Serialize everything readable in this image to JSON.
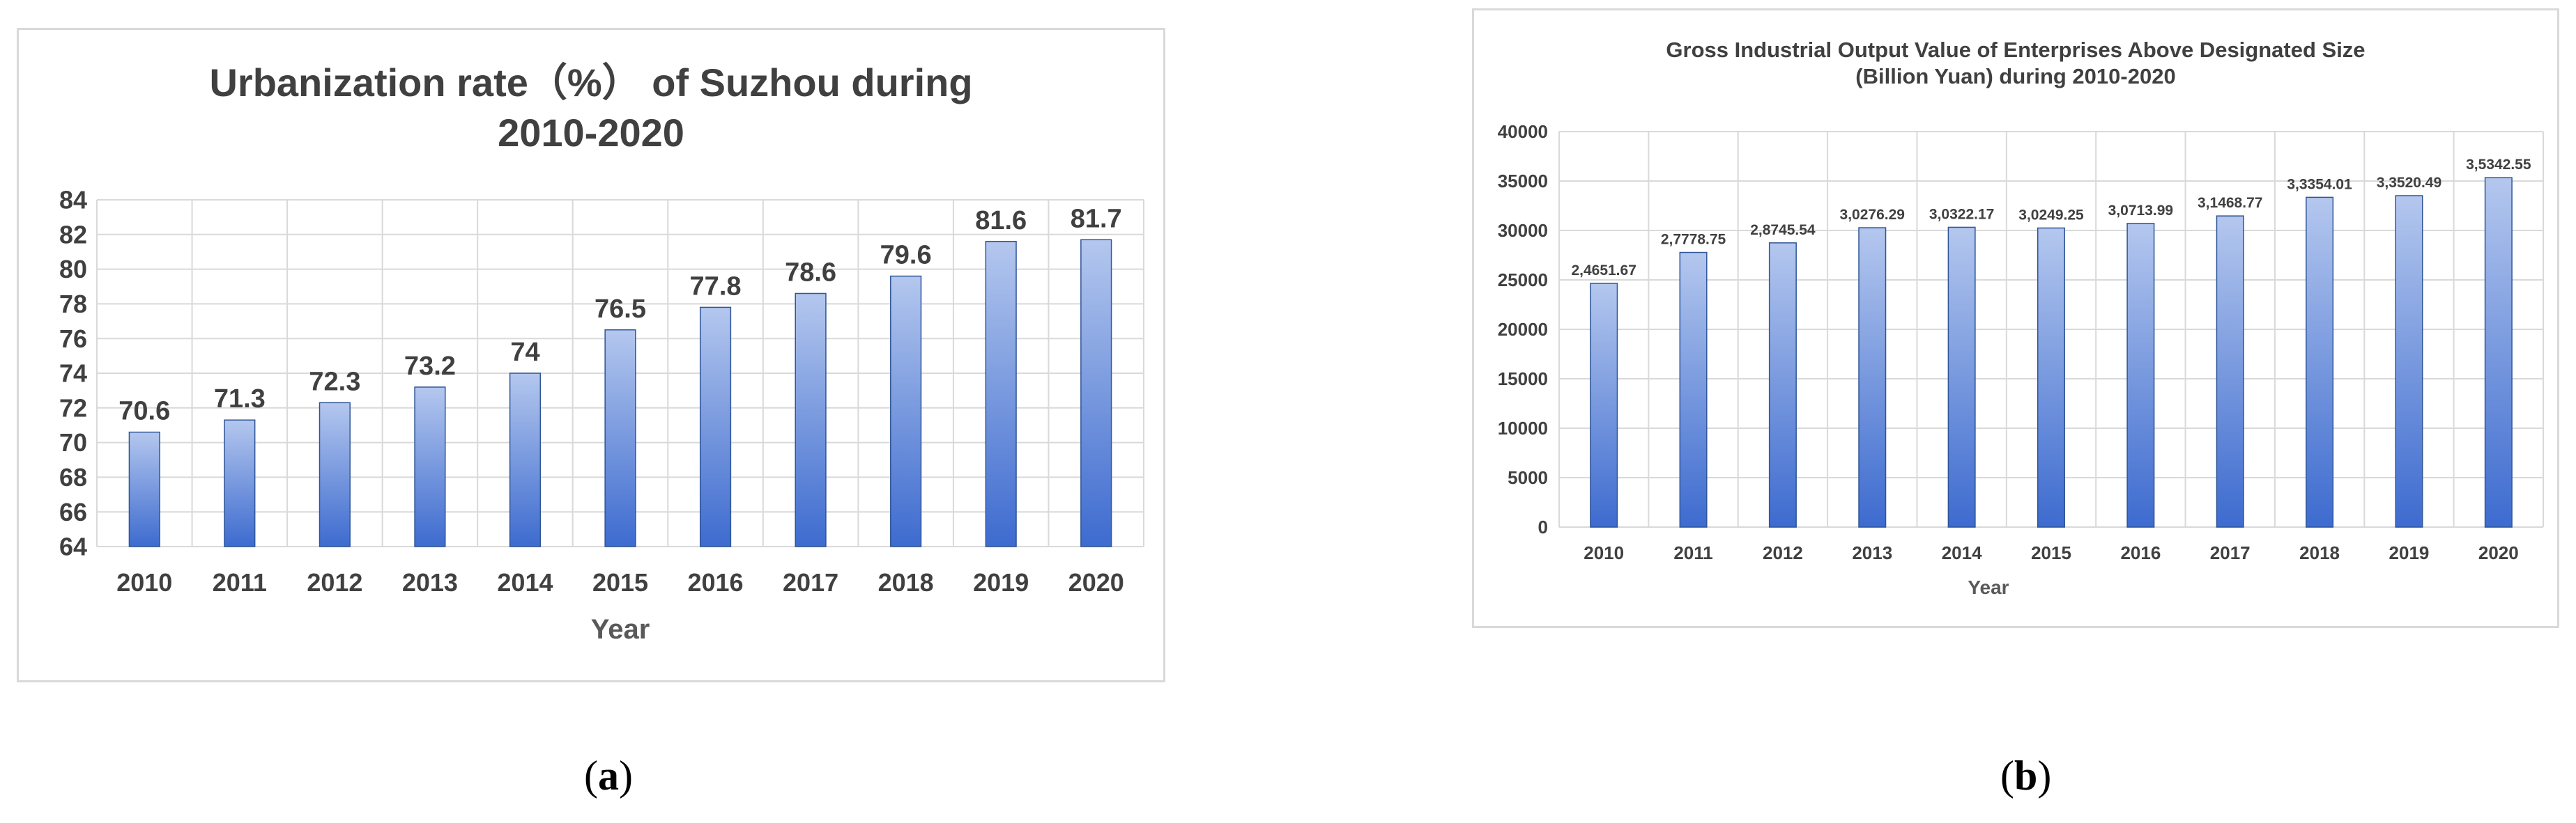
{
  "chart_data": [
    {
      "type": "bar",
      "title_lines": [
        "Urbanization rate（%） of Suzhou during",
        "2010-2020"
      ],
      "xlabel": "Year",
      "ylabel": "",
      "categories": [
        "2010",
        "2011",
        "2012",
        "2013",
        "2014",
        "2015",
        "2016",
        "2017",
        "2018",
        "2019",
        "2020"
      ],
      "values": [
        70.6,
        71.3,
        72.3,
        73.2,
        74,
        76.5,
        77.8,
        78.6,
        79.6,
        81.6,
        81.7
      ],
      "data_labels": [
        "70.6",
        "71.3",
        "72.3",
        "73.2",
        "74",
        "76.5",
        "77.8",
        "78.6",
        "79.6",
        "81.6",
        "81.7"
      ],
      "ylim": [
        64,
        84
      ],
      "yticks": [
        "64",
        "66",
        "68",
        "70",
        "72",
        "74",
        "76",
        "78",
        "80",
        "82",
        "84"
      ],
      "grid": true,
      "legend": "none",
      "bar_color_top": "#b4c7ee",
      "bar_color_bottom": "#3d6bcf"
    },
    {
      "type": "bar",
      "title_lines": [
        "Gross Industrial Output Value of Enterprises Above Designated Size",
        "(Billion Yuan) during 2010-2020"
      ],
      "xlabel": "Year",
      "ylabel": "",
      "categories": [
        "2010",
        "2011",
        "2012",
        "2013",
        "2014",
        "2015",
        "2016",
        "2017",
        "2018",
        "2019",
        "2020"
      ],
      "values": [
        24651.67,
        27778.75,
        28745.54,
        30276.29,
        30322.17,
        30249.25,
        30713.99,
        31468.77,
        33354.01,
        33520.49,
        35342.55
      ],
      "data_labels": [
        "2,4651.67",
        "2,7778.75",
        "2,8745.54",
        "3,0276.29",
        "3,0322.17",
        "3,0249.25",
        "3,0713.99",
        "3,1468.77",
        "3,3354.01",
        "3,3520.49",
        "3,5342.55"
      ],
      "ylim": [
        0,
        40000
      ],
      "yticks": [
        "0",
        "5000",
        "10000",
        "15000",
        "20000",
        "25000",
        "30000",
        "35000",
        "40000"
      ],
      "grid": true,
      "legend": "none",
      "bar_color_top": "#b4c7ee",
      "bar_color_bottom": "#3d6bcf"
    }
  ],
  "captions": {
    "a": {
      "open": "(",
      "letter": "a",
      "close": ")"
    },
    "b": {
      "open": "(",
      "letter": "b",
      "close": ")"
    }
  }
}
